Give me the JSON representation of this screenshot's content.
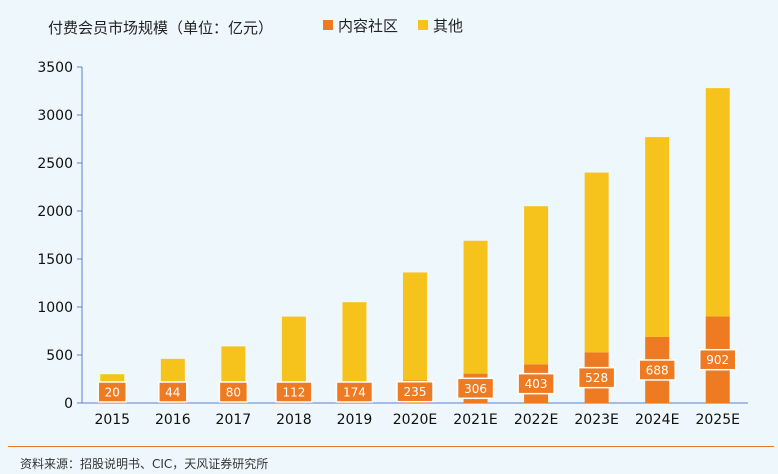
{
  "chart_data": {
    "type": "bar",
    "stacked": true,
    "title": "付费会员市场规模（单位：亿元）",
    "categories": [
      "2015",
      "2016",
      "2017",
      "2018",
      "2019",
      "2020E",
      "2021E",
      "2022E",
      "2023E",
      "2024E",
      "2025E"
    ],
    "series": [
      {
        "name": "内容社区",
        "color": "#ee7b22",
        "values": [
          20,
          44,
          80,
          112,
          174,
          235,
          306,
          403,
          528,
          688,
          902
        ]
      },
      {
        "name": "其他",
        "color": "#f6c31c",
        "values": [
          280,
          416,
          510,
          788,
          876,
          1125,
          1384,
          1647,
          1872,
          2082,
          2378
        ]
      }
    ],
    "ylim": [
      0,
      3500
    ],
    "yticks": [
      0,
      500,
      1000,
      1500,
      2000,
      2500,
      3000,
      3500
    ],
    "legend_position": "top",
    "grid": false
  },
  "footer": {
    "source": "资料来源：招股说明书、CIC，天风证券研究所"
  }
}
